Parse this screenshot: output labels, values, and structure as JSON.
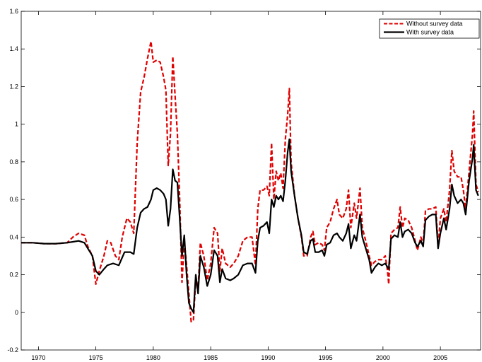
{
  "chart_data": {
    "type": "line",
    "xlim": [
      1968.5,
      2008.5
    ],
    "ylim": [
      -0.2,
      1.6
    ],
    "x_ticks": [
      1970,
      1975,
      1980,
      1985,
      1990,
      1995,
      2000,
      2005
    ],
    "x_tick_labels": [
      "1970",
      "1975",
      "1980",
      "1985",
      "1990",
      "1995",
      "2000",
      "2005"
    ],
    "y_ticks": [
      -0.2,
      0,
      0.2,
      0.4,
      0.6,
      0.8,
      1,
      1.2,
      1.4,
      1.6
    ],
    "y_tick_labels": [
      "-0.2",
      "0",
      "0.2",
      "0.4",
      "0.6",
      "0.8",
      "1",
      "1.2",
      "1.4",
      "1.6"
    ],
    "grid": false,
    "legend_position": "top-right",
    "series": [
      {
        "name": "Without survey data",
        "color": "#e00000",
        "style": "dashed",
        "points": [
          [
            1968.5,
            0.37
          ],
          [
            1969.5,
            0.37
          ],
          [
            1970.5,
            0.365
          ],
          [
            1971.5,
            0.365
          ],
          [
            1972.5,
            0.37
          ],
          [
            1973.0,
            0.4
          ],
          [
            1973.5,
            0.42
          ],
          [
            1974.0,
            0.41
          ],
          [
            1974.3,
            0.35
          ],
          [
            1974.7,
            0.3
          ],
          [
            1975.0,
            0.15
          ],
          [
            1975.3,
            0.22
          ],
          [
            1975.7,
            0.3
          ],
          [
            1976.0,
            0.38
          ],
          [
            1976.3,
            0.37
          ],
          [
            1976.7,
            0.3
          ],
          [
            1977.0,
            0.28
          ],
          [
            1977.3,
            0.4
          ],
          [
            1977.7,
            0.5
          ],
          [
            1978.0,
            0.48
          ],
          [
            1978.3,
            0.42
          ],
          [
            1978.6,
            0.9
          ],
          [
            1978.9,
            1.17
          ],
          [
            1979.2,
            1.25
          ],
          [
            1979.5,
            1.35
          ],
          [
            1979.8,
            1.44
          ],
          [
            1980.0,
            1.33
          ],
          [
            1980.3,
            1.34
          ],
          [
            1980.6,
            1.33
          ],
          [
            1980.9,
            1.25
          ],
          [
            1981.1,
            1.18
          ],
          [
            1981.3,
            0.78
          ],
          [
            1981.5,
            0.95
          ],
          [
            1981.7,
            1.36
          ],
          [
            1981.9,
            1.15
          ],
          [
            1982.1,
            0.95
          ],
          [
            1982.3,
            0.6
          ],
          [
            1982.5,
            0.16
          ],
          [
            1982.7,
            0.38
          ],
          [
            1982.9,
            0.25
          ],
          [
            1983.1,
            0.1
          ],
          [
            1983.3,
            -0.05
          ],
          [
            1983.5,
            -0.04
          ],
          [
            1983.7,
            0.18
          ],
          [
            1983.9,
            0.12
          ],
          [
            1984.1,
            0.37
          ],
          [
            1984.4,
            0.3
          ],
          [
            1984.7,
            0.17
          ],
          [
            1985.0,
            0.26
          ],
          [
            1985.3,
            0.45
          ],
          [
            1985.6,
            0.42
          ],
          [
            1985.8,
            0.22
          ],
          [
            1986.0,
            0.34
          ],
          [
            1986.3,
            0.26
          ],
          [
            1986.7,
            0.24
          ],
          [
            1987.0,
            0.26
          ],
          [
            1987.4,
            0.3
          ],
          [
            1987.8,
            0.38
          ],
          [
            1988.2,
            0.4
          ],
          [
            1988.6,
            0.4
          ],
          [
            1988.9,
            0.25
          ],
          [
            1989.1,
            0.55
          ],
          [
            1989.3,
            0.65
          ],
          [
            1989.6,
            0.65
          ],
          [
            1989.9,
            0.67
          ],
          [
            1990.1,
            0.62
          ],
          [
            1990.3,
            0.9
          ],
          [
            1990.5,
            0.6
          ],
          [
            1990.7,
            0.75
          ],
          [
            1990.9,
            0.7
          ],
          [
            1991.1,
            0.74
          ],
          [
            1991.3,
            0.66
          ],
          [
            1991.5,
            0.92
          ],
          [
            1991.7,
            1.05
          ],
          [
            1991.85,
            1.19
          ],
          [
            1992.0,
            0.8
          ],
          [
            1992.3,
            0.62
          ],
          [
            1992.6,
            0.5
          ],
          [
            1992.9,
            0.4
          ],
          [
            1993.1,
            0.3
          ],
          [
            1993.4,
            0.3
          ],
          [
            1993.7,
            0.4
          ],
          [
            1993.9,
            0.43
          ],
          [
            1994.1,
            0.36
          ],
          [
            1994.4,
            0.37
          ],
          [
            1994.7,
            0.36
          ],
          [
            1994.9,
            0.33
          ],
          [
            1995.1,
            0.45
          ],
          [
            1995.4,
            0.48
          ],
          [
            1995.7,
            0.55
          ],
          [
            1996.0,
            0.6
          ],
          [
            1996.2,
            0.52
          ],
          [
            1996.5,
            0.5
          ],
          [
            1996.8,
            0.55
          ],
          [
            1997.0,
            0.65
          ],
          [
            1997.2,
            0.45
          ],
          [
            1997.5,
            0.58
          ],
          [
            1997.7,
            0.5
          ],
          [
            1998.0,
            0.66
          ],
          [
            1998.2,
            0.45
          ],
          [
            1998.5,
            0.38
          ],
          [
            1998.8,
            0.3
          ],
          [
            1999.0,
            0.25
          ],
          [
            1999.3,
            0.27
          ],
          [
            1999.6,
            0.28
          ],
          [
            1999.9,
            0.28
          ],
          [
            2000.2,
            0.3
          ],
          [
            2000.4,
            0.22
          ],
          [
            2000.5,
            0.15
          ],
          [
            2000.7,
            0.42
          ],
          [
            2001.0,
            0.44
          ],
          [
            2001.3,
            0.45
          ],
          [
            2001.5,
            0.56
          ],
          [
            2001.7,
            0.45
          ],
          [
            2001.9,
            0.5
          ],
          [
            2002.2,
            0.49
          ],
          [
            2002.5,
            0.45
          ],
          [
            2002.8,
            0.38
          ],
          [
            2003.0,
            0.33
          ],
          [
            2003.3,
            0.4
          ],
          [
            2003.5,
            0.36
          ],
          [
            2003.7,
            0.54
          ],
          [
            2004.0,
            0.55
          ],
          [
            2004.3,
            0.55
          ],
          [
            2004.6,
            0.56
          ],
          [
            2004.8,
            0.35
          ],
          [
            2005.0,
            0.5
          ],
          [
            2005.3,
            0.55
          ],
          [
            2005.5,
            0.48
          ],
          [
            2005.8,
            0.65
          ],
          [
            2006.0,
            0.86
          ],
          [
            2006.2,
            0.75
          ],
          [
            2006.5,
            0.72
          ],
          [
            2006.8,
            0.72
          ],
          [
            2007.0,
            0.65
          ],
          [
            2007.2,
            0.55
          ],
          [
            2007.5,
            0.75
          ],
          [
            2007.8,
            0.95
          ],
          [
            2007.9,
            1.07
          ],
          [
            2008.1,
            0.68
          ],
          [
            2008.3,
            0.64
          ]
        ]
      },
      {
        "name": "With survey data",
        "color": "#000000",
        "style": "solid",
        "points": [
          [
            1968.5,
            0.37
          ],
          [
            1969.5,
            0.37
          ],
          [
            1970.5,
            0.365
          ],
          [
            1971.5,
            0.365
          ],
          [
            1972.5,
            0.37
          ],
          [
            1973.0,
            0.375
          ],
          [
            1973.5,
            0.38
          ],
          [
            1974.0,
            0.37
          ],
          [
            1974.3,
            0.34
          ],
          [
            1974.7,
            0.3
          ],
          [
            1975.0,
            0.22
          ],
          [
            1975.3,
            0.2
          ],
          [
            1975.7,
            0.23
          ],
          [
            1976.0,
            0.25
          ],
          [
            1976.5,
            0.26
          ],
          [
            1977.0,
            0.25
          ],
          [
            1977.5,
            0.32
          ],
          [
            1978.0,
            0.32
          ],
          [
            1978.3,
            0.31
          ],
          [
            1978.6,
            0.45
          ],
          [
            1978.9,
            0.53
          ],
          [
            1979.2,
            0.55
          ],
          [
            1979.5,
            0.56
          ],
          [
            1979.8,
            0.6
          ],
          [
            1980.0,
            0.65
          ],
          [
            1980.3,
            0.66
          ],
          [
            1980.6,
            0.65
          ],
          [
            1980.9,
            0.63
          ],
          [
            1981.1,
            0.6
          ],
          [
            1981.3,
            0.46
          ],
          [
            1981.5,
            0.55
          ],
          [
            1981.7,
            0.76
          ],
          [
            1981.9,
            0.7
          ],
          [
            1982.1,
            0.69
          ],
          [
            1982.3,
            0.5
          ],
          [
            1982.5,
            0.3
          ],
          [
            1982.7,
            0.41
          ],
          [
            1982.9,
            0.2
          ],
          [
            1983.1,
            0.05
          ],
          [
            1983.3,
            0.02
          ],
          [
            1983.5,
            0.0
          ],
          [
            1983.7,
            0.2
          ],
          [
            1983.9,
            0.1
          ],
          [
            1984.1,
            0.3
          ],
          [
            1984.4,
            0.24
          ],
          [
            1984.7,
            0.14
          ],
          [
            1985.0,
            0.2
          ],
          [
            1985.3,
            0.33
          ],
          [
            1985.6,
            0.3
          ],
          [
            1985.8,
            0.16
          ],
          [
            1986.0,
            0.23
          ],
          [
            1986.3,
            0.18
          ],
          [
            1986.7,
            0.17
          ],
          [
            1987.0,
            0.18
          ],
          [
            1987.4,
            0.2
          ],
          [
            1987.8,
            0.25
          ],
          [
            1988.2,
            0.26
          ],
          [
            1988.6,
            0.26
          ],
          [
            1988.9,
            0.21
          ],
          [
            1989.1,
            0.38
          ],
          [
            1989.3,
            0.45
          ],
          [
            1989.6,
            0.46
          ],
          [
            1989.9,
            0.48
          ],
          [
            1990.1,
            0.42
          ],
          [
            1990.3,
            0.6
          ],
          [
            1990.5,
            0.56
          ],
          [
            1990.7,
            0.62
          ],
          [
            1990.9,
            0.6
          ],
          [
            1991.1,
            0.62
          ],
          [
            1991.3,
            0.59
          ],
          [
            1991.5,
            0.7
          ],
          [
            1991.7,
            0.85
          ],
          [
            1991.85,
            0.92
          ],
          [
            1992.0,
            0.75
          ],
          [
            1992.3,
            0.62
          ],
          [
            1992.6,
            0.5
          ],
          [
            1992.9,
            0.41
          ],
          [
            1993.1,
            0.32
          ],
          [
            1993.4,
            0.31
          ],
          [
            1993.7,
            0.38
          ],
          [
            1993.9,
            0.39
          ],
          [
            1994.1,
            0.32
          ],
          [
            1994.4,
            0.32
          ],
          [
            1994.7,
            0.33
          ],
          [
            1994.9,
            0.3
          ],
          [
            1995.1,
            0.36
          ],
          [
            1995.4,
            0.37
          ],
          [
            1995.7,
            0.41
          ],
          [
            1996.0,
            0.42
          ],
          [
            1996.2,
            0.4
          ],
          [
            1996.5,
            0.38
          ],
          [
            1996.8,
            0.42
          ],
          [
            1997.0,
            0.47
          ],
          [
            1997.2,
            0.34
          ],
          [
            1997.5,
            0.41
          ],
          [
            1997.7,
            0.38
          ],
          [
            1998.0,
            0.52
          ],
          [
            1998.2,
            0.4
          ],
          [
            1998.5,
            0.34
          ],
          [
            1998.8,
            0.28
          ],
          [
            1999.0,
            0.21
          ],
          [
            1999.3,
            0.24
          ],
          [
            1999.6,
            0.26
          ],
          [
            1999.9,
            0.25
          ],
          [
            2000.2,
            0.26
          ],
          [
            2000.4,
            0.24
          ],
          [
            2000.5,
            0.23
          ],
          [
            2000.7,
            0.39
          ],
          [
            2001.0,
            0.41
          ],
          [
            2001.3,
            0.4
          ],
          [
            2001.5,
            0.48
          ],
          [
            2001.7,
            0.4
          ],
          [
            2001.9,
            0.43
          ],
          [
            2002.2,
            0.44
          ],
          [
            2002.5,
            0.42
          ],
          [
            2002.8,
            0.37
          ],
          [
            2003.0,
            0.35
          ],
          [
            2003.3,
            0.38
          ],
          [
            2003.5,
            0.35
          ],
          [
            2003.7,
            0.49
          ],
          [
            2004.0,
            0.51
          ],
          [
            2004.3,
            0.52
          ],
          [
            2004.6,
            0.52
          ],
          [
            2004.8,
            0.34
          ],
          [
            2005.0,
            0.42
          ],
          [
            2005.3,
            0.5
          ],
          [
            2005.5,
            0.44
          ],
          [
            2005.8,
            0.55
          ],
          [
            2006.0,
            0.68
          ],
          [
            2006.2,
            0.62
          ],
          [
            2006.5,
            0.58
          ],
          [
            2006.8,
            0.6
          ],
          [
            2007.0,
            0.58
          ],
          [
            2007.2,
            0.52
          ],
          [
            2007.5,
            0.7
          ],
          [
            2007.8,
            0.82
          ],
          [
            2007.9,
            0.89
          ],
          [
            2008.1,
            0.65
          ],
          [
            2008.3,
            0.62
          ]
        ]
      }
    ]
  }
}
